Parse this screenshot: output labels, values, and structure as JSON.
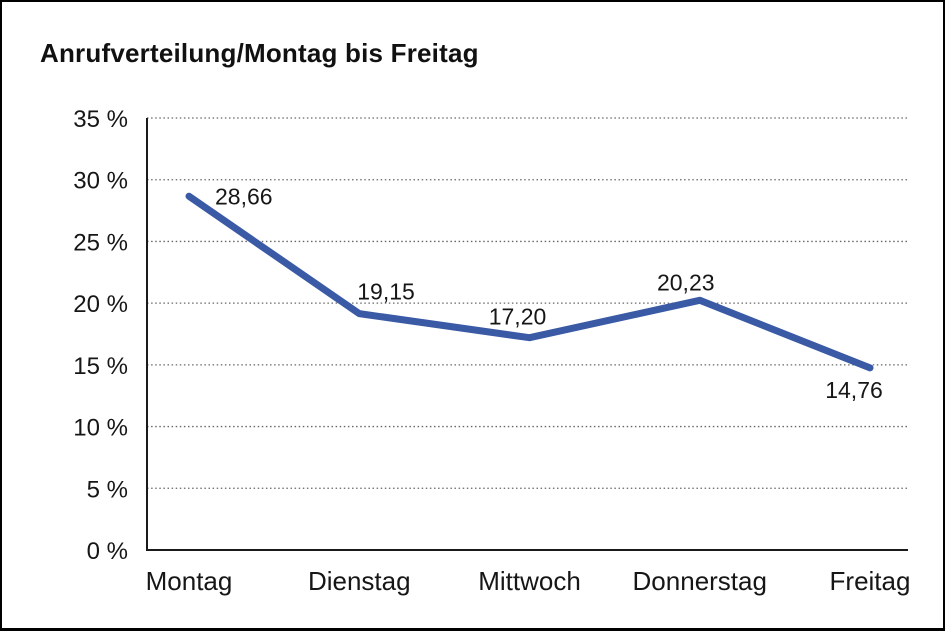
{
  "chart_data": {
    "type": "line",
    "title": "Anrufverteilung/Montag bis Freitag",
    "categories": [
      "Montag",
      "Dienstag",
      "Mittwoch",
      "Donnerstag",
      "Freitag"
    ],
    "values": [
      28.66,
      19.15,
      17.2,
      20.23,
      14.76
    ],
    "value_labels": [
      "28,66",
      "19,15",
      "17,20",
      "20,23",
      "14,76"
    ],
    "y_ticks": [
      0,
      5,
      10,
      15,
      20,
      25,
      30,
      35
    ],
    "y_tick_labels": [
      "0 %",
      "5 %",
      "10 %",
      "15 %",
      "20 %",
      "25 %",
      "30 %",
      "35 %"
    ],
    "ylim": [
      0,
      35
    ],
    "xlabel": "",
    "ylabel": "",
    "grid": "horizontal-dotted",
    "legend": "none"
  },
  "colors": {
    "line": "#3A5AA5",
    "text": "#161616",
    "axis": "#1A1A1A",
    "grid_dots": "#666666",
    "background": "#FFFFFF",
    "page_border": "#000000"
  }
}
